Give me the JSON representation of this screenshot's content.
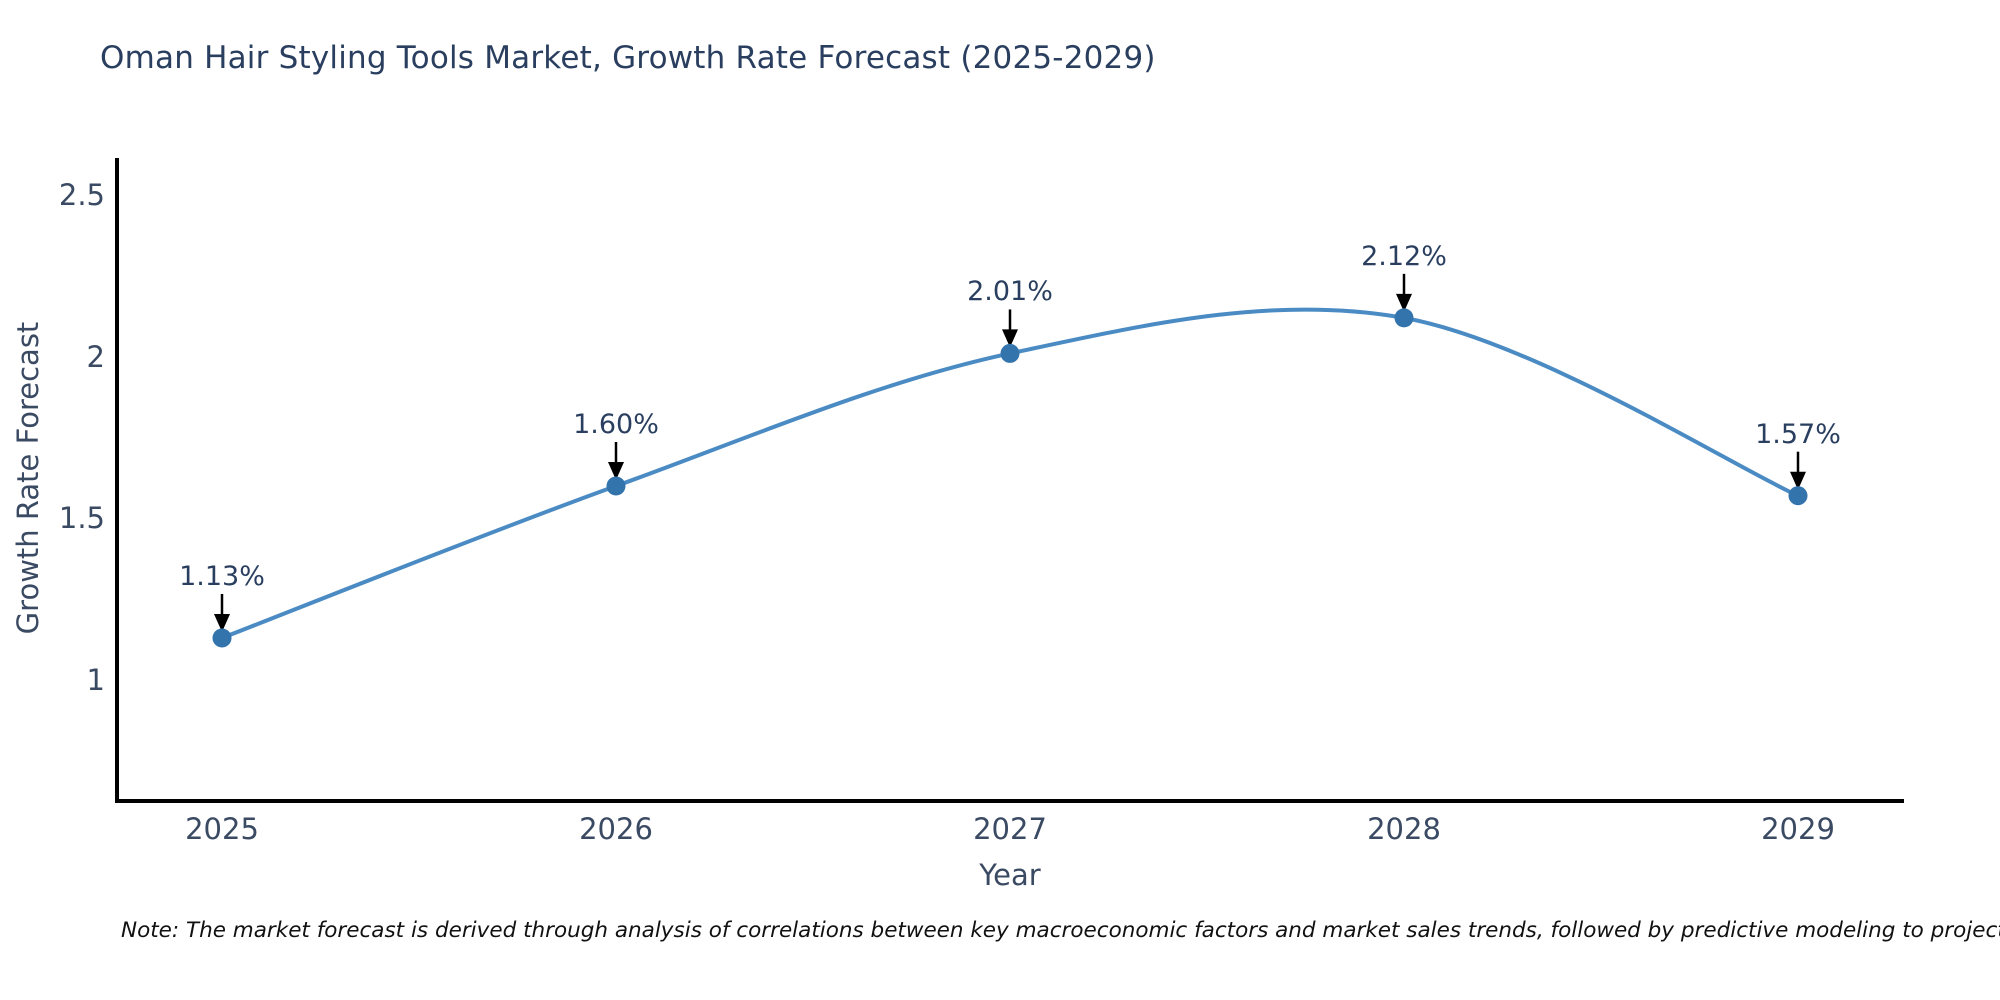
{
  "title": "Oman Hair Styling Tools Market, Growth Rate Forecast (2025-2029)",
  "note": "Note: The market forecast is derived through analysis of correlations between key macroeconomic factors and market sales trends, followed by predictive modeling to project future sales",
  "chart_data": {
    "type": "line",
    "title": "Oman Hair Styling Tools Market, Growth Rate Forecast (2025-2029)",
    "xlabel": "Year",
    "ylabel": "Growth Rate Forecast",
    "categories": [
      "2025",
      "2026",
      "2027",
      "2028",
      "2029"
    ],
    "values": [
      1.13,
      1.6,
      2.01,
      2.12,
      1.57
    ],
    "point_labels": [
      "1.13%",
      "1.60%",
      "2.01%",
      "2.12%",
      "1.57%"
    ],
    "yticks": [
      "1",
      "1.5",
      "2",
      "2.5"
    ],
    "ytick_values": [
      1,
      1.5,
      2,
      2.5
    ],
    "ylim": [
      0.63,
      2.61
    ],
    "grid": false,
    "legend": "none",
    "line_style": "smooth-spline",
    "line_color": "#4b8bc4",
    "marker_color": "#3474ad",
    "axis_color": "#000000",
    "annotation_arrow_color": "#000000",
    "title_color": "#2a3f5f",
    "tick_color": "#3b4a63"
  }
}
